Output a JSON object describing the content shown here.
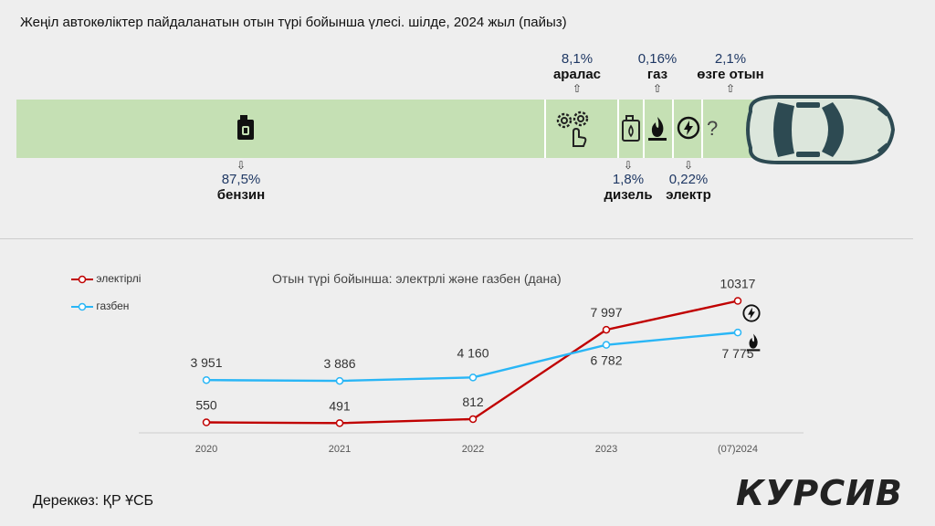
{
  "title": "Жеңіл автокөліктер пайдаланатын отын түрі бойынша үлесі.  шілде, 2024 жыл (пайыз)",
  "share": [
    {
      "key": "petrol",
      "pct": "87,5%",
      "name": "бензин",
      "value": 87.5,
      "icon": "fuel-canister-icon"
    },
    {
      "key": "mixed",
      "pct": "8,1%",
      "name": "аралас",
      "value": 8.1,
      "icon": "gears-hand-icon"
    },
    {
      "key": "diesel",
      "pct": "1,8%",
      "name": "дизель",
      "value": 1.8,
      "icon": "diesel-canister-icon"
    },
    {
      "key": "gas",
      "pct": "0,16%",
      "name": "газ",
      "value": 0.16,
      "icon": "gas-flame-icon"
    },
    {
      "key": "electric",
      "pct": "0,22%",
      "name": "электр",
      "value": 0.22,
      "icon": "lightning-icon"
    },
    {
      "key": "other",
      "pct": "2,1%",
      "name": "өзге отын",
      "value": 2.1,
      "icon": "question-icon"
    }
  ],
  "chart_data": {
    "type": "line",
    "title": "Отын түрі бойынша: электрлі және газбен (дана)",
    "categories": [
      "2020",
      "2021",
      "2022",
      "2023",
      "(07)2024"
    ],
    "series": [
      {
        "name": "электірлі",
        "color": "#c00000",
        "values": [
          550,
          491,
          812,
          7997,
          10317
        ],
        "labels": [
          "550",
          "491",
          "812",
          "7 997",
          "10317"
        ]
      },
      {
        "name": "газбен",
        "color": "#29b6f6",
        "values": [
          3951,
          3886,
          4160,
          6782,
          7775
        ],
        "labels": [
          "3 951",
          "3 886",
          "4 160",
          "6 782",
          "7 775"
        ]
      }
    ],
    "ylim": [
      0,
      11000
    ],
    "legend": "top-left"
  },
  "source": "Дереккөз: ҚР ҰСБ",
  "logo": "КУРСИВ"
}
